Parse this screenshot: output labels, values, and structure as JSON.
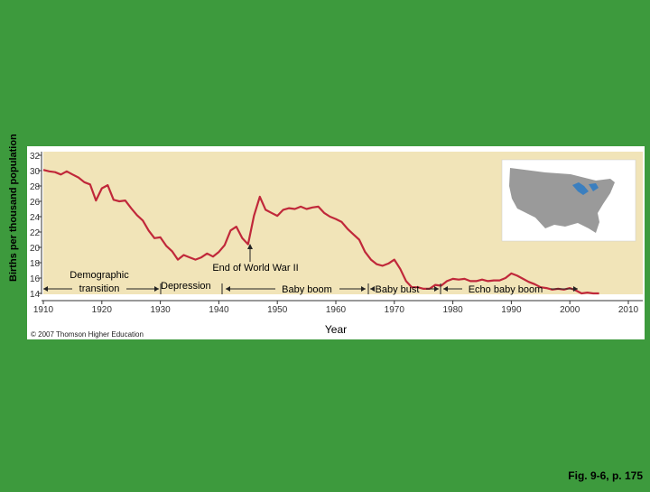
{
  "chart_data": {
    "type": "line",
    "title": "",
    "xlabel": "Year",
    "ylabel": "Births per thousand population",
    "xlim": [
      1910,
      2010
    ],
    "ylim": [
      14,
      32
    ],
    "x_ticks": [
      "1910",
      "1920",
      "1930",
      "1940",
      "1950",
      "1960",
      "1970",
      "1980",
      "1990",
      "2000",
      "2010"
    ],
    "y_ticks": [
      "14",
      "16",
      "18",
      "20",
      "22",
      "24",
      "26",
      "28",
      "30",
      "32"
    ],
    "grid": false,
    "line_color": "#c0283a",
    "series": [
      {
        "x": [
          1910,
          1911,
          1912,
          1913,
          1914,
          1915,
          1916,
          1917,
          1918,
          1919,
          1920,
          1921,
          1922,
          1923,
          1924,
          1925,
          1926,
          1927,
          1928,
          1929,
          1930,
          1931,
          1932,
          1933,
          1934,
          1935,
          1936,
          1937,
          1938,
          1939,
          1940,
          1941,
          1942,
          1943,
          1944,
          1945,
          1946,
          1947,
          1948,
          1949,
          1950,
          1951,
          1952,
          1953,
          1954,
          1955,
          1956,
          1957,
          1958,
          1959,
          1960,
          1961,
          1962,
          1963,
          1964,
          1965,
          1966,
          1967,
          1968,
          1969,
          1970,
          1971,
          1972,
          1973,
          1974,
          1975,
          1976,
          1977,
          1978,
          1979,
          1980,
          1981,
          1982,
          1983,
          1984,
          1985,
          1986,
          1987,
          1988,
          1989,
          1990,
          1991,
          1992,
          1993,
          1994,
          1995,
          1996,
          1997,
          1998,
          1999,
          2000,
          2001,
          2002,
          2003,
          2004,
          2005
        ],
        "values": [
          30.1,
          29.9,
          29.8,
          29.5,
          29.9,
          29.5,
          29.1,
          28.5,
          28.2,
          26.1,
          27.7,
          28.1,
          26.2,
          26.0,
          26.1,
          25.1,
          24.2,
          23.5,
          22.2,
          21.2,
          21.3,
          20.2,
          19.5,
          18.4,
          19.0,
          18.7,
          18.4,
          18.7,
          19.2,
          18.8,
          19.4,
          20.3,
          22.2,
          22.7,
          21.2,
          20.4,
          24.1,
          26.6,
          24.9,
          24.5,
          24.1,
          24.9,
          25.1,
          25.0,
          25.3,
          25.0,
          25.2,
          25.3,
          24.5,
          24.0,
          23.7,
          23.3,
          22.4,
          21.7,
          21.0,
          19.4,
          18.4,
          17.8,
          17.6,
          17.9,
          18.4,
          17.2,
          15.6,
          14.8,
          14.8,
          14.6,
          14.6,
          15.1,
          15.0,
          15.6,
          15.9,
          15.8,
          15.9,
          15.6,
          15.6,
          15.8,
          15.6,
          15.7,
          15.7,
          16.0,
          16.6,
          16.3,
          15.9,
          15.5,
          15.2,
          14.8,
          14.7,
          14.5,
          14.6,
          14.5,
          14.7,
          14.4,
          14.0,
          14.1,
          14.0,
          14.0
        ]
      }
    ],
    "annotations": [
      "Demographic\ntransition",
      "Depression",
      "End of World War II",
      "Baby boom",
      "Baby bust",
      "Echo baby boom"
    ],
    "credit": "© 2007 Thomson Higher Education"
  },
  "caption": "Fig. 9-6, p. 175"
}
